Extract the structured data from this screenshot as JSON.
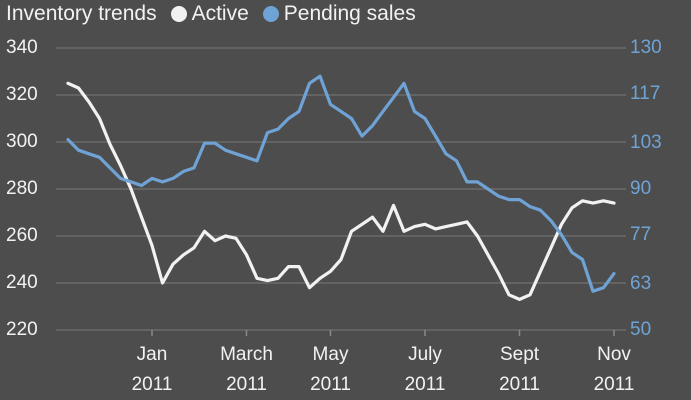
{
  "chart_data": {
    "type": "line",
    "title": "Inventory trends",
    "categories": [
      null,
      null,
      null,
      null,
      null,
      null,
      null,
      null,
      "Jan\n2011",
      null,
      null,
      null,
      null,
      null,
      null,
      null,
      null,
      "March\n2011",
      null,
      null,
      null,
      null,
      null,
      null,
      null,
      "May\n2011",
      null,
      null,
      null,
      null,
      null,
      null,
      null,
      null,
      "July\n2011",
      null,
      null,
      null,
      null,
      null,
      null,
      null,
      null,
      "Sept\n2011",
      null,
      null,
      null,
      null,
      null,
      null,
      null,
      null,
      "Nov\n2011"
    ],
    "series": [
      {
        "name": "Active",
        "color": "#f2f2f2",
        "values": [
          325,
          323,
          317,
          310,
          299,
          290,
          280,
          268,
          256,
          240,
          248,
          252,
          255,
          262,
          258,
          260,
          259,
          252,
          242,
          241,
          242,
          247,
          247,
          238,
          242,
          245,
          250,
          262,
          265,
          268,
          262,
          273,
          262,
          264,
          265,
          263,
          264,
          265,
          266,
          260,
          252,
          244,
          235,
          233,
          235,
          245,
          255,
          265,
          272,
          275,
          274,
          275,
          274
        ]
      },
      {
        "name": "Pending sales",
        "color": "#6fa3d6",
        "axis": "y2",
        "values": [
          104,
          101,
          100,
          99,
          96,
          93,
          92,
          91,
          93,
          92,
          93,
          95,
          96,
          103,
          103,
          101,
          100,
          99,
          98,
          106,
          107,
          110,
          112,
          120,
          122,
          114,
          112,
          110,
          105,
          108,
          112,
          116,
          120,
          112,
          110,
          105,
          100,
          98,
          92,
          92,
          90,
          88,
          87,
          87,
          85,
          84,
          81,
          77,
          72,
          70,
          61,
          62,
          66
        ]
      }
    ],
    "ylim": [
      220,
      340
    ],
    "yticks": [
      220,
      240,
      260,
      280,
      300,
      320,
      340
    ],
    "y2lim": [
      50,
      130
    ],
    "y2ticks": [
      50,
      63,
      77,
      90,
      103,
      117,
      130
    ],
    "grid": true
  }
}
